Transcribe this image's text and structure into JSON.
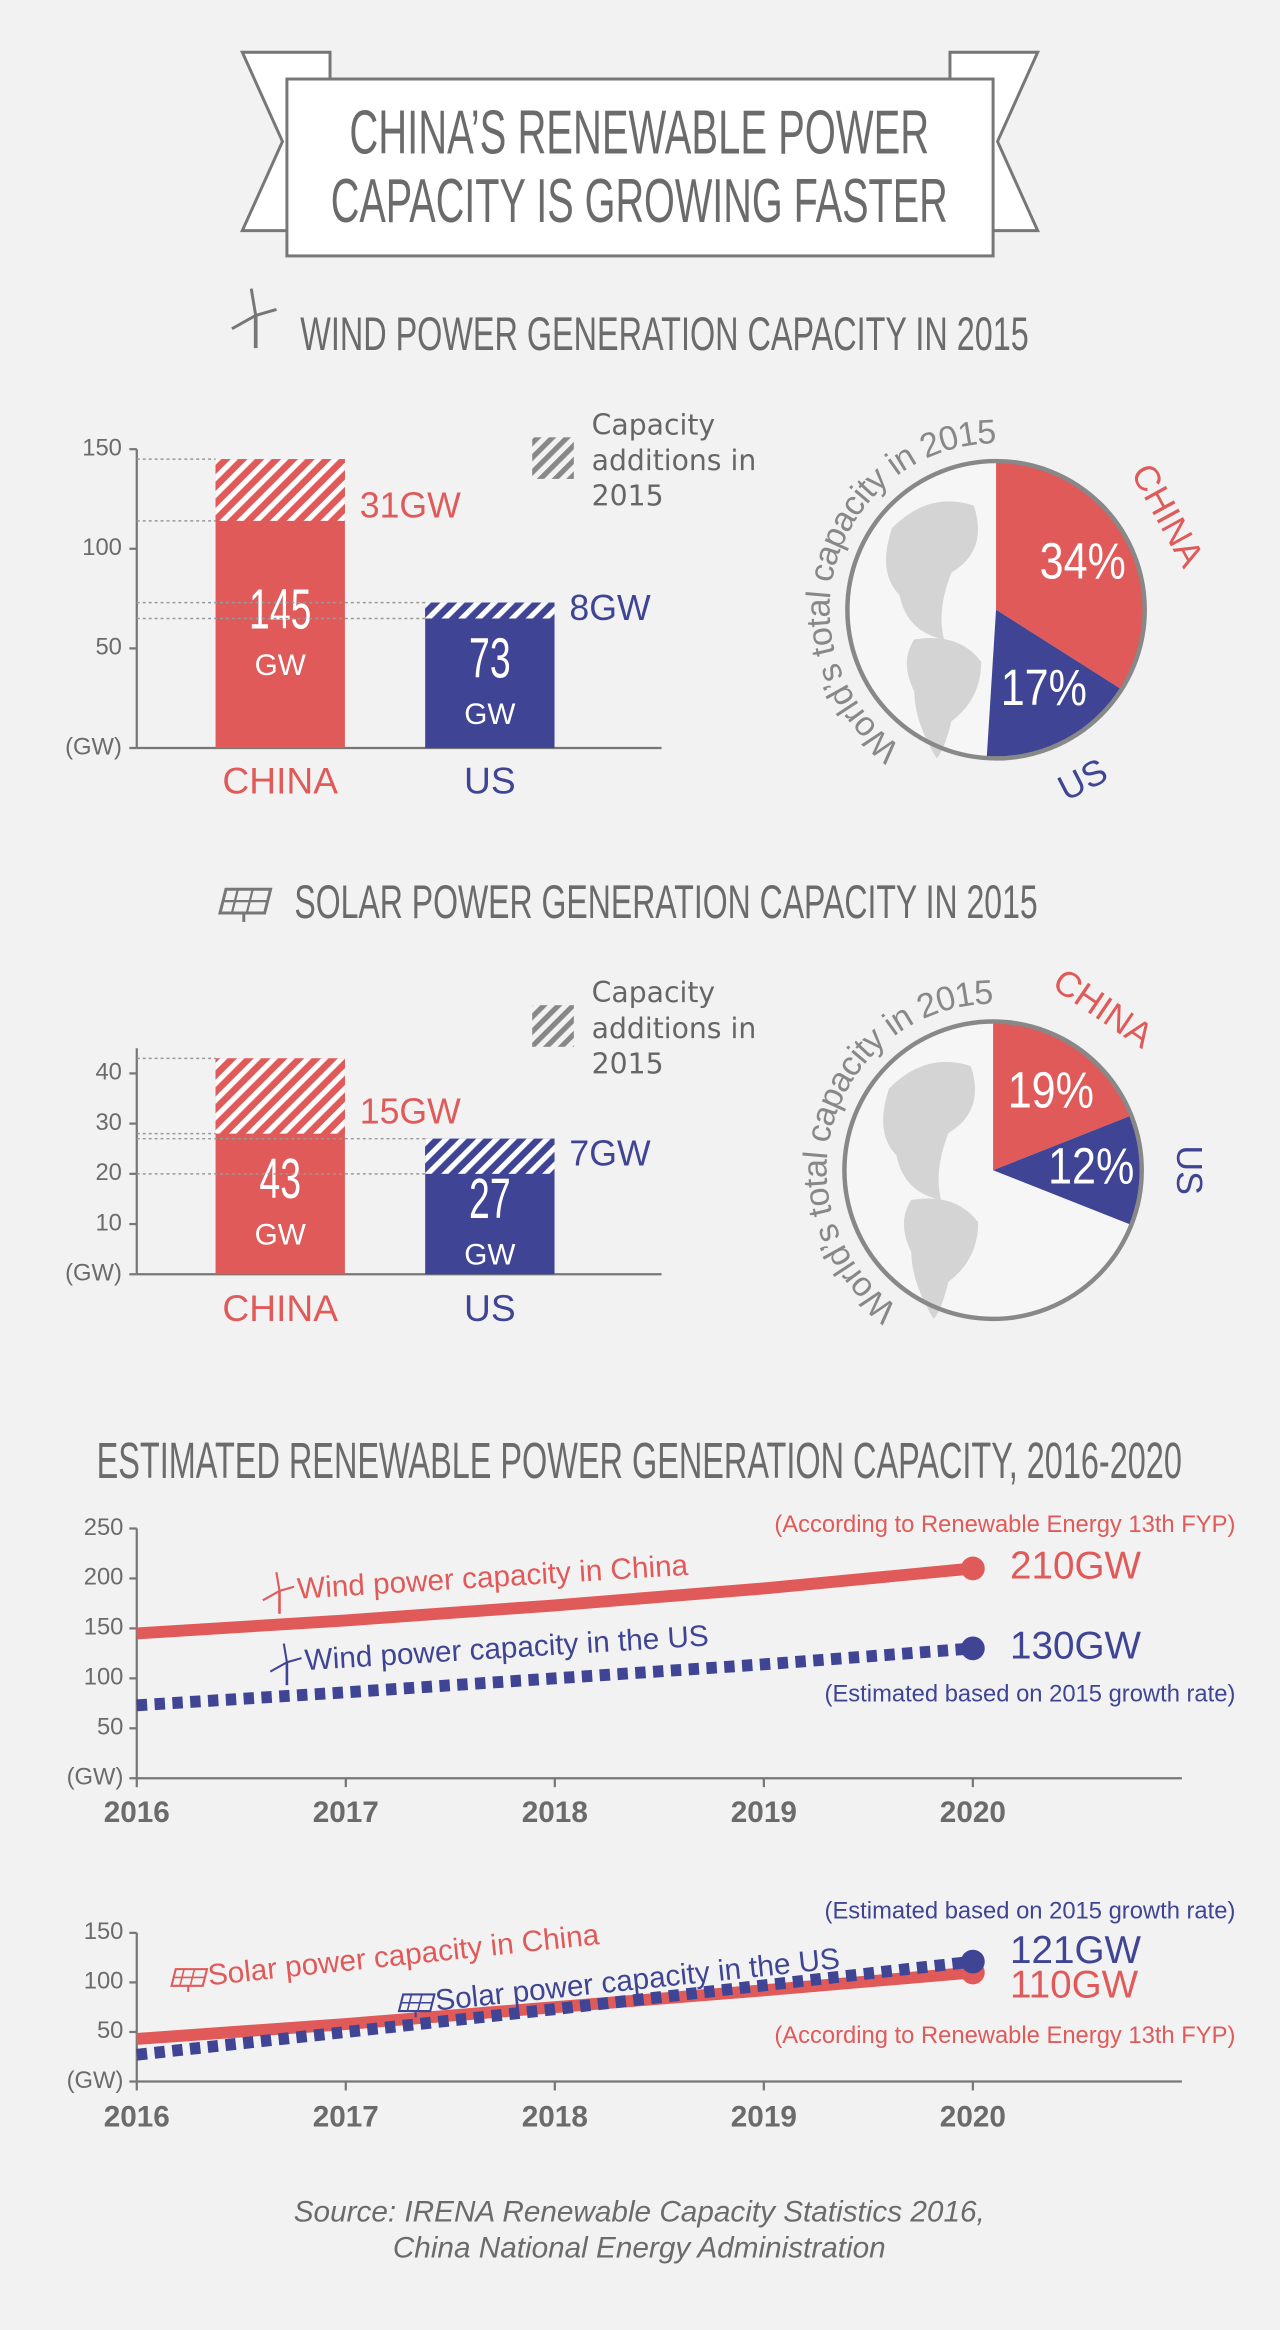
{
  "title": [
    "CHINA’S RENEWABLE POWER",
    "CAPACITY IS GROWING FASTER"
  ],
  "source": [
    "Source: IRENA Renewable Capacity Statistics 2016,",
    "China National Energy Administration"
  ],
  "chart_data": [
    {
      "type": "bar",
      "title": "WIND POWER GENERATION CAPACITY IN 2015",
      "categories": [
        "CHINA",
        "US"
      ],
      "colors": [
        "#e05a5a",
        "#3f4594"
      ],
      "totals": [
        145,
        73
      ],
      "unit": "GW",
      "series": [
        {
          "name": "Capacity additions in 2015",
          "values": [
            31,
            8
          ],
          "value_labels": [
            "31GW",
            "8GW"
          ]
        }
      ],
      "ylim": [
        0,
        150
      ],
      "yticks": [
        {
          "value": 0,
          "label": "(GW)"
        },
        50,
        100,
        150
      ]
    },
    {
      "type": "pie",
      "title": "World’s total capacity in 2015",
      "categories": [
        "CHINA",
        "US"
      ],
      "values": [
        34,
        17
      ],
      "value_labels": [
        "34%",
        "17%"
      ],
      "colors": [
        "#e05a5a",
        "#3f4594"
      ]
    },
    {
      "type": "bar",
      "title": "SOLAR POWER GENERATION CAPACITY IN 2015",
      "categories": [
        "CHINA",
        "US"
      ],
      "colors": [
        "#e05a5a",
        "#3f4594"
      ],
      "totals": [
        43,
        27
      ],
      "unit": "GW",
      "series": [
        {
          "name": "Capacity additions in 2015",
          "values": [
            15,
            7
          ],
          "value_labels": [
            "15GW",
            "7GW"
          ]
        }
      ],
      "ylim": [
        0,
        45
      ],
      "yticks": [
        {
          "value": 0,
          "label": "(GW)"
        },
        10,
        20,
        30,
        40
      ]
    },
    {
      "type": "pie",
      "title": "World’s total capacity in 2015",
      "categories": [
        "CHINA",
        "US"
      ],
      "values": [
        19,
        12
      ],
      "value_labels": [
        "19%",
        "12%"
      ],
      "colors": [
        "#e05a5a",
        "#3f4594"
      ]
    },
    {
      "type": "line",
      "title": "ESTIMATED RENEWABLE POWER GENERATION CAPACITY, 2016-2020",
      "x": [
        2016,
        2017,
        2018,
        2019,
        2020
      ],
      "xlim": [
        2016,
        2021
      ],
      "xticks": [
        2016,
        2017,
        2018,
        2019,
        2020
      ],
      "ylim": [
        0,
        250
      ],
      "yticks": [
        {
          "value": 0,
          "label": "(GW)"
        },
        50,
        100,
        150,
        200,
        250
      ],
      "series": [
        {
          "name": "Wind power capacity in China",
          "color": "#e05a5a",
          "style": "solid",
          "values": [
            145,
            158,
            173,
            190,
            210
          ],
          "value_labels": [
            null,
            null,
            null,
            null,
            "210GW"
          ],
          "note": "(According to Renewable Energy 13th FYP)"
        },
        {
          "name": "Wind power capacity in the US",
          "color": "#3f4594",
          "style": "dotted",
          "values": [
            73,
            86,
            100,
            114,
            130
          ],
          "value_labels": [
            null,
            null,
            null,
            null,
            "130GW"
          ],
          "note": "(Estimated based on 2015 growth rate)"
        }
      ]
    },
    {
      "type": "line",
      "x": [
        2016,
        2017,
        2018,
        2019,
        2020
      ],
      "xlim": [
        2016,
        2021
      ],
      "xticks": [
        2016,
        2017,
        2018,
        2019,
        2020
      ],
      "ylim": [
        0,
        150
      ],
      "yticks": [
        {
          "value": 0,
          "label": "(GW)"
        },
        50,
        100,
        150
      ],
      "series": [
        {
          "name": "Solar power capacity in China",
          "color": "#e05a5a",
          "style": "solid",
          "values": [
            43,
            58,
            75,
            92,
            110
          ],
          "value_labels": [
            null,
            null,
            null,
            null,
            "110GW"
          ],
          "note": "(According to Renewable Energy 13th FYP)"
        },
        {
          "name": "Solar power capacity in the US",
          "color": "#3f4594",
          "style": "dotted",
          "values": [
            27,
            50,
            73,
            97,
            121
          ],
          "value_labels": [
            null,
            null,
            null,
            null,
            "121GW"
          ],
          "note": "(Estimated based on 2015 growth rate)"
        }
      ]
    }
  ]
}
